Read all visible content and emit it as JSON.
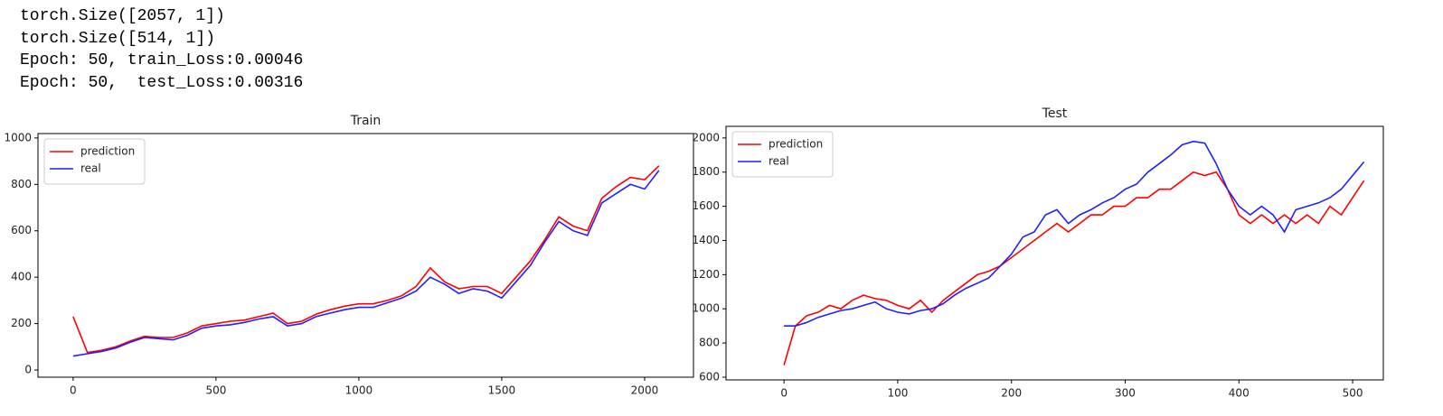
{
  "output": {
    "lines": [
      "torch.Size([2057, 1])",
      "torch.Size([514, 1])",
      "Epoch: 50, train_Loss:0.00046",
      "Epoch: 50,  test_Loss:0.00316"
    ]
  },
  "chart_data": [
    {
      "type": "line",
      "title": "Train",
      "legend": "upper left",
      "x": [
        0,
        50,
        100,
        150,
        200,
        250,
        300,
        350,
        400,
        450,
        500,
        550,
        600,
        650,
        700,
        750,
        800,
        850,
        900,
        950,
        1000,
        1050,
        1100,
        1150,
        1200,
        1250,
        1300,
        1350,
        1400,
        1450,
        1500,
        1550,
        1600,
        1650,
        1700,
        1750,
        1800,
        1850,
        1900,
        1950,
        2000,
        2050
      ],
      "series": [
        {
          "name": "prediction",
          "color": "#ff0000",
          "values": [
            230,
            75,
            85,
            100,
            125,
            145,
            140,
            140,
            160,
            190,
            200,
            210,
            215,
            230,
            245,
            200,
            210,
            240,
            260,
            275,
            285,
            285,
            300,
            320,
            360,
            440,
            380,
            350,
            360,
            360,
            330,
            400,
            470,
            560,
            660,
            620,
            600,
            740,
            790,
            830,
            820,
            880
          ]
        },
        {
          "name": "real",
          "color": "#1f1fff",
          "values": [
            60,
            70,
            80,
            95,
            120,
            140,
            135,
            130,
            150,
            180,
            190,
            195,
            205,
            220,
            230,
            190,
            200,
            230,
            245,
            260,
            270,
            270,
            290,
            310,
            340,
            400,
            370,
            330,
            350,
            340,
            310,
            380,
            450,
            550,
            640,
            600,
            580,
            720,
            760,
            800,
            780,
            860
          ]
        }
      ],
      "xlim": [
        -123,
        2171
      ],
      "xticks": [
        0,
        500,
        1000,
        1500,
        2000
      ],
      "ylim": [
        -31,
        1019
      ],
      "yticks": [
        0,
        200,
        400,
        600,
        800,
        1000
      ]
    },
    {
      "type": "line",
      "title": "Test",
      "legend": "upper left",
      "x": [
        0,
        10,
        20,
        30,
        40,
        50,
        60,
        70,
        80,
        90,
        100,
        110,
        120,
        130,
        140,
        150,
        160,
        170,
        180,
        190,
        200,
        210,
        220,
        230,
        240,
        250,
        260,
        270,
        280,
        290,
        300,
        310,
        320,
        330,
        340,
        350,
        360,
        370,
        380,
        390,
        400,
        410,
        420,
        430,
        440,
        450,
        460,
        470,
        480,
        490,
        500,
        510
      ],
      "series": [
        {
          "name": "prediction",
          "color": "#ff0000",
          "values": [
            670,
            900,
            960,
            980,
            1020,
            1000,
            1050,
            1080,
            1060,
            1050,
            1020,
            1000,
            1050,
            980,
            1050,
            1100,
            1150,
            1200,
            1220,
            1250,
            1300,
            1350,
            1400,
            1450,
            1500,
            1450,
            1500,
            1550,
            1550,
            1600,
            1600,
            1650,
            1650,
            1700,
            1700,
            1750,
            1800,
            1780,
            1800,
            1700,
            1550,
            1500,
            1550,
            1500,
            1550,
            1500,
            1550,
            1500,
            1600,
            1550,
            1650,
            1750
          ]
        },
        {
          "name": "real",
          "color": "#1f1fff",
          "values": [
            900,
            900,
            920,
            950,
            970,
            990,
            1000,
            1020,
            1040,
            1000,
            980,
            970,
            990,
            1000,
            1030,
            1080,
            1120,
            1150,
            1180,
            1250,
            1320,
            1420,
            1450,
            1550,
            1580,
            1500,
            1550,
            1580,
            1620,
            1650,
            1700,
            1730,
            1800,
            1850,
            1900,
            1960,
            1980,
            1970,
            1850,
            1700,
            1600,
            1550,
            1600,
            1550,
            1450,
            1580,
            1600,
            1620,
            1650,
            1700,
            1780,
            1860
          ]
        }
      ],
      "xlim": [
        -51,
        527
      ],
      "xticks": [
        0,
        100,
        200,
        300,
        400,
        500
      ],
      "ylim": [
        584,
        2068
      ],
      "yticks": [
        600,
        800,
        1000,
        1200,
        1400,
        1600,
        1800,
        2000
      ]
    }
  ]
}
